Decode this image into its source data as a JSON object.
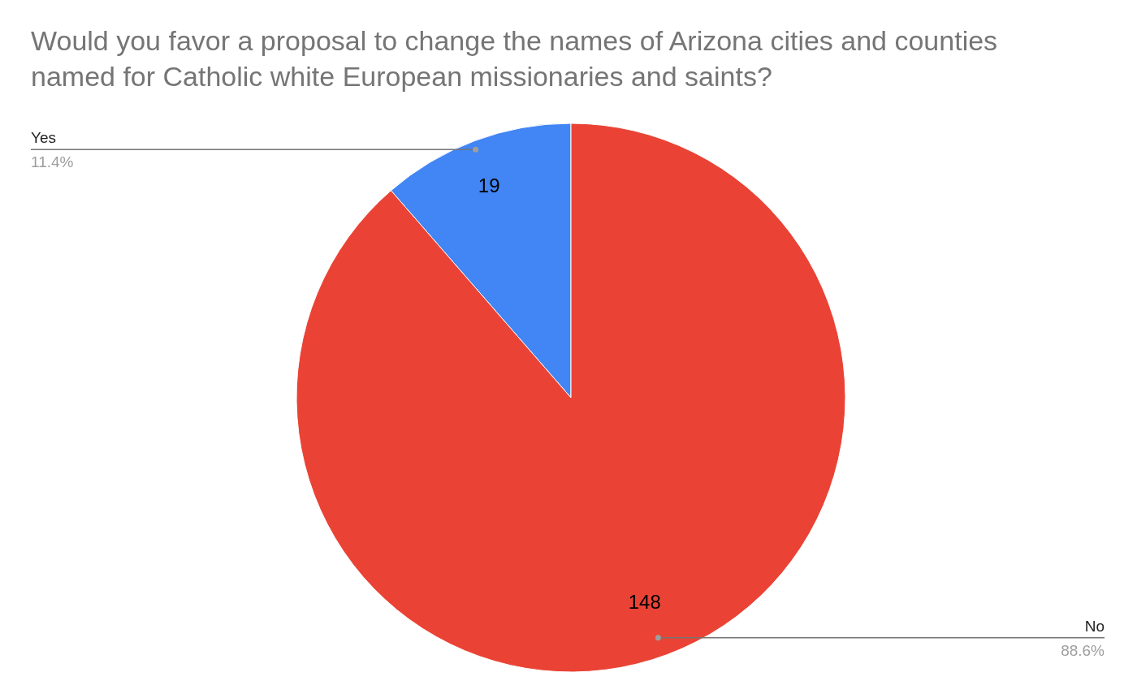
{
  "chart_data": {
    "type": "pie",
    "title": "Would you favor a proposal to change the names of Arizona cities and counties named for Catholic white European missionaries and saints?",
    "categories": [
      "Yes",
      "No"
    ],
    "values": [
      19,
      148
    ],
    "colors": [
      "#4285f4",
      "#ea4335"
    ],
    "data_labels": true,
    "annotations": [
      "11.4%",
      "88.6%"
    ]
  }
}
